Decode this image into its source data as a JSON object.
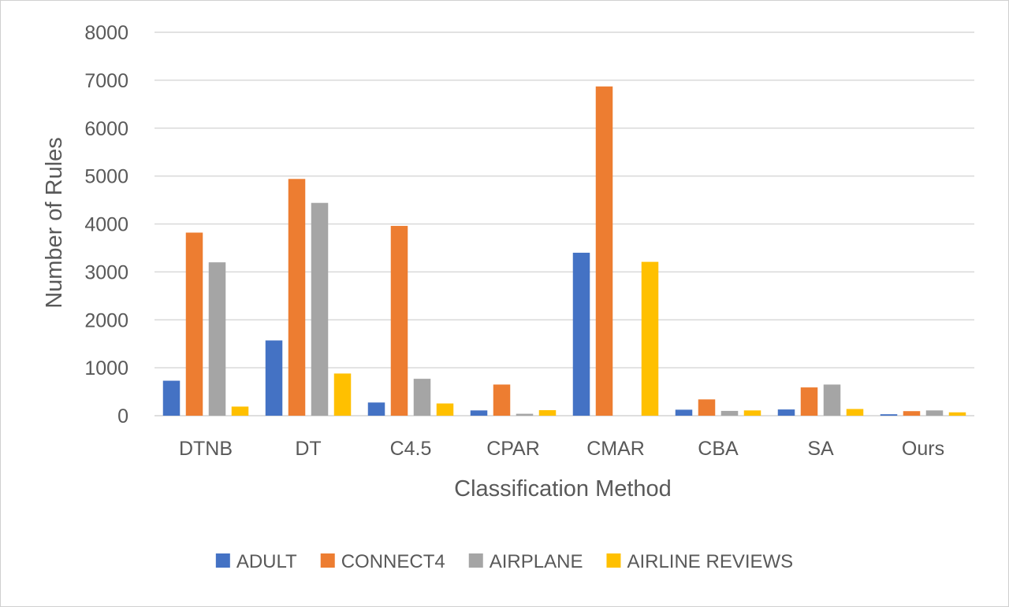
{
  "chart_data": {
    "type": "bar",
    "title": "",
    "xlabel": "Classification Method",
    "ylabel": "Number of Rules",
    "ylim": [
      0,
      8000
    ],
    "yticks": [
      "0",
      "1000",
      "2000",
      "3000",
      "4000",
      "5000",
      "6000",
      "7000",
      "8000"
    ],
    "grid": true,
    "legend_position": "bottom",
    "categories": [
      "DTNB",
      "DT",
      "C4.5",
      "CPAR",
      "CMAR",
      "CBA",
      "SA",
      "Ours"
    ],
    "series": [
      {
        "name": "ADULT",
        "color": "#4472C4",
        "values": [
          730,
          1570,
          275,
          110,
          3400,
          125,
          130,
          30
        ]
      },
      {
        "name": "CONNECT4",
        "color": "#ED7D31",
        "values": [
          3820,
          4940,
          3960,
          650,
          6870,
          340,
          590,
          95
        ]
      },
      {
        "name": "AIRPLANE",
        "color": "#A5A5A5",
        "values": [
          3200,
          4440,
          770,
          40,
          0,
          100,
          650,
          110
        ]
      },
      {
        "name": "AIRLINE REVIEWS",
        "color": "#FFC000",
        "values": [
          190,
          880,
          255,
          115,
          3210,
          110,
          140,
          70
        ]
      }
    ]
  }
}
